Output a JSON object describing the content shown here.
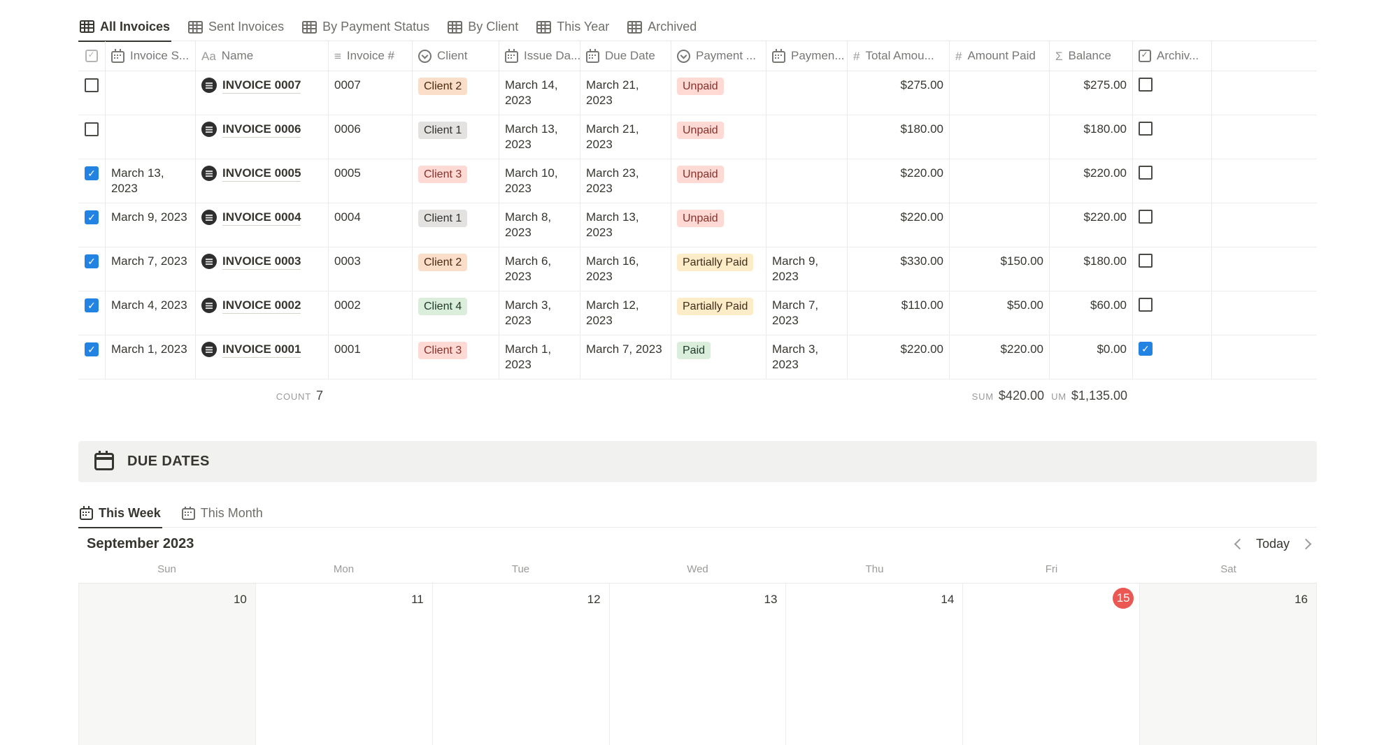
{
  "view_tabs": [
    {
      "label": "All Invoices",
      "active": true
    },
    {
      "label": "Sent Invoices",
      "active": false
    },
    {
      "label": "By Payment Status",
      "active": false
    },
    {
      "label": "By Client",
      "active": false
    },
    {
      "label": "This Year",
      "active": false
    },
    {
      "label": "Archived",
      "active": false
    }
  ],
  "table": {
    "header_icons": {
      "title": "Aa",
      "text": "≡",
      "number": "#",
      "formula": "Σ"
    },
    "headers": {
      "invoice_sent": "Invoice S...",
      "name": "Name",
      "invoice_no": "Invoice #",
      "client": "Client",
      "issue_date": "Issue Da...",
      "due_date": "Due Date",
      "payment_status": "Payment ...",
      "payment_date": "Paymen...",
      "total_amount": "Total Amou...",
      "amount_paid": "Amount Paid",
      "balance": "Balance",
      "archived": "Archiv..."
    },
    "rows": [
      {
        "selected": false,
        "sent_date": "",
        "name": "INVOICE 0007",
        "number": "0007",
        "client_label": "Client 2",
        "client_color": "orange",
        "issue_date": "March 14, 2023",
        "due_date": "March 21, 2023",
        "status_label": "Unpaid",
        "status_color": "red",
        "payment_date": "",
        "total": "$275.00",
        "paid": "",
        "balance": "$275.00",
        "archived": false
      },
      {
        "selected": false,
        "sent_date": "",
        "name": "INVOICE 0006",
        "number": "0006",
        "client_label": "Client 1",
        "client_color": "gray",
        "issue_date": "March 13, 2023",
        "due_date": "March 21, 2023",
        "status_label": "Unpaid",
        "status_color": "red",
        "payment_date": "",
        "total": "$180.00",
        "paid": "",
        "balance": "$180.00",
        "archived": false
      },
      {
        "selected": true,
        "sent_date": "March 13, 2023",
        "name": "INVOICE 0005",
        "number": "0005",
        "client_label": "Client 3",
        "client_color": "red",
        "issue_date": "March 10, 2023",
        "due_date": "March 23, 2023",
        "status_label": "Unpaid",
        "status_color": "red",
        "payment_date": "",
        "total": "$220.00",
        "paid": "",
        "balance": "$220.00",
        "archived": false
      },
      {
        "selected": true,
        "sent_date": "March 9, 2023",
        "name": "INVOICE 0004",
        "number": "0004",
        "client_label": "Client 1",
        "client_color": "gray",
        "issue_date": "March 8, 2023",
        "due_date": "March 13, 2023",
        "status_label": "Unpaid",
        "status_color": "red",
        "payment_date": "",
        "total": "$220.00",
        "paid": "",
        "balance": "$220.00",
        "archived": false
      },
      {
        "selected": true,
        "sent_date": "March 7, 2023",
        "name": "INVOICE 0003",
        "number": "0003",
        "client_label": "Client 2",
        "client_color": "orange",
        "issue_date": "March 6, 2023",
        "due_date": "March 16, 2023",
        "status_label": "Partially Paid",
        "status_color": "yellow",
        "payment_date": "March 9, 2023",
        "total": "$330.00",
        "paid": "$150.00",
        "balance": "$180.00",
        "archived": false
      },
      {
        "selected": true,
        "sent_date": "March 4, 2023",
        "name": "INVOICE 0002",
        "number": "0002",
        "client_label": "Client 4",
        "client_color": "green",
        "issue_date": "March 3, 2023",
        "due_date": "March 12, 2023",
        "status_label": "Partially Paid",
        "status_color": "yellow",
        "payment_date": "March 7, 2023",
        "total": "$110.00",
        "paid": "$50.00",
        "balance": "$60.00",
        "archived": false
      },
      {
        "selected": true,
        "sent_date": "March 1, 2023",
        "name": "INVOICE 0001",
        "number": "0001",
        "client_label": "Client 3",
        "client_color": "red",
        "issue_date": "March 1, 2023",
        "due_date": "March 7, 2023",
        "status_label": "Paid",
        "status_color": "green",
        "payment_date": "March 3, 2023",
        "total": "$220.00",
        "paid": "$220.00",
        "balance": "$0.00",
        "archived": true
      }
    ],
    "summary": {
      "count_label": "COUNT",
      "count_value": "7",
      "paid_sum_label": "SUM",
      "paid_sum_value": "$420.00",
      "balance_sum_label": "UM",
      "balance_sum_value": "$1,135.00"
    }
  },
  "due_dates": {
    "title": "DUE DATES",
    "tabs": [
      {
        "label": "This Week",
        "active": true
      },
      {
        "label": "This Month",
        "active": false
      }
    ],
    "month_title": "September 2023",
    "today_label": "Today",
    "day_names": [
      "Sun",
      "Mon",
      "Tue",
      "Wed",
      "Thu",
      "Fri",
      "Sat"
    ],
    "week": [
      {
        "num": "10",
        "weekend": true,
        "today": false
      },
      {
        "num": "11",
        "weekend": false,
        "today": false
      },
      {
        "num": "12",
        "weekend": false,
        "today": false
      },
      {
        "num": "13",
        "weekend": false,
        "today": false
      },
      {
        "num": "14",
        "weekend": false,
        "today": false
      },
      {
        "num": "15",
        "weekend": false,
        "today": true
      },
      {
        "num": "16",
        "weekend": true,
        "today": false
      }
    ],
    "today_color": "#eb5752",
    "accent_blue": "#2383e2"
  }
}
